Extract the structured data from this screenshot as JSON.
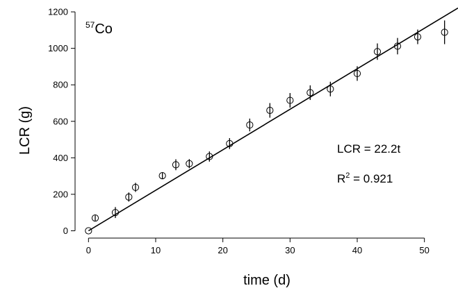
{
  "chart_data": {
    "type": "scatter",
    "isotope": {
      "mass": "57",
      "symbol": "Co"
    },
    "xlabel": "time (d)",
    "ylabel": "LCR (g)",
    "xlim": [
      -2,
      55
    ],
    "ylim": [
      -40,
      1265
    ],
    "x_ticks": [
      0,
      10,
      20,
      30,
      40,
      50
    ],
    "y_ticks": [
      0,
      200,
      400,
      600,
      800,
      1000,
      1200
    ],
    "grid": false,
    "points": [
      {
        "x": 0,
        "y": 0,
        "err": 0
      },
      {
        "x": 1,
        "y": 70,
        "err": 15
      },
      {
        "x": 4,
        "y": 100,
        "err": 30
      },
      {
        "x": 6,
        "y": 185,
        "err": 25
      },
      {
        "x": 7,
        "y": 238,
        "err": 25
      },
      {
        "x": 11,
        "y": 302,
        "err": 18
      },
      {
        "x": 13,
        "y": 362,
        "err": 30
      },
      {
        "x": 15,
        "y": 368,
        "err": 25
      },
      {
        "x": 18,
        "y": 407,
        "err": 28
      },
      {
        "x": 21,
        "y": 478,
        "err": 30
      },
      {
        "x": 24,
        "y": 580,
        "err": 35
      },
      {
        "x": 27,
        "y": 660,
        "err": 40
      },
      {
        "x": 30,
        "y": 715,
        "err": 40
      },
      {
        "x": 33,
        "y": 757,
        "err": 40
      },
      {
        "x": 36,
        "y": 777,
        "err": 40
      },
      {
        "x": 40,
        "y": 862,
        "err": 40
      },
      {
        "x": 43,
        "y": 982,
        "err": 45
      },
      {
        "x": 46,
        "y": 1012,
        "err": 45
      },
      {
        "x": 49,
        "y": 1063,
        "err": 40
      },
      {
        "x": 53,
        "y": 1088,
        "err": 65
      }
    ],
    "fit": {
      "slope": 22.2,
      "x_range": [
        0,
        55
      ]
    },
    "annotations": {
      "equation": "LCR = 22.2t",
      "r2_prefix": "R",
      "r2_sup": "2",
      "r2_suffix": " = 0.921"
    }
  }
}
